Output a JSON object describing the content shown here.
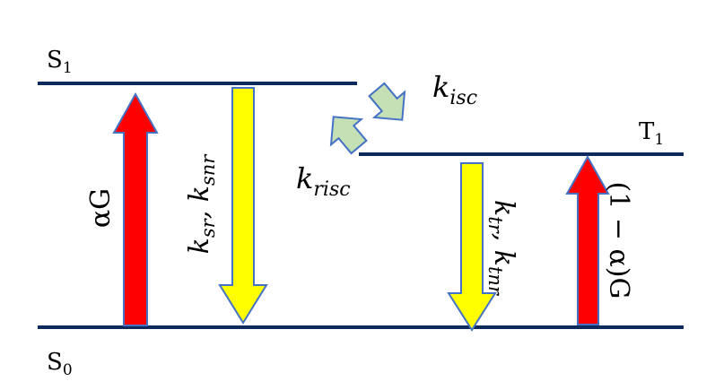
{
  "diagram": {
    "levels": {
      "s1": {
        "label": "S",
        "sub": "1"
      },
      "t1": {
        "label": "T",
        "sub": "1"
      },
      "s0": {
        "label": "S",
        "sub": "0"
      }
    },
    "rates": {
      "isc": {
        "k": "k",
        "sub": "isc"
      },
      "risc": {
        "k": "k",
        "sub": "risc"
      },
      "singlet_decay": {
        "k1": "k",
        "sub1": "sr",
        "sep": ", ",
        "k2": "k",
        "sub2": "snr"
      },
      "triplet_decay": {
        "k1": "k",
        "sub1": "tr",
        "sep": ", ",
        "k2": "k",
        "sub2": "tnr"
      }
    },
    "generation": {
      "singlet": "αG",
      "triplet": "(1 − α)G"
    },
    "colors": {
      "level_line": "#0d2a5c",
      "generation_arrow": "#ff0000",
      "decay_arrow": "#ffff00",
      "transfer_arrow": "#c5e0b4",
      "arrow_outline": "#4472c4"
    }
  }
}
